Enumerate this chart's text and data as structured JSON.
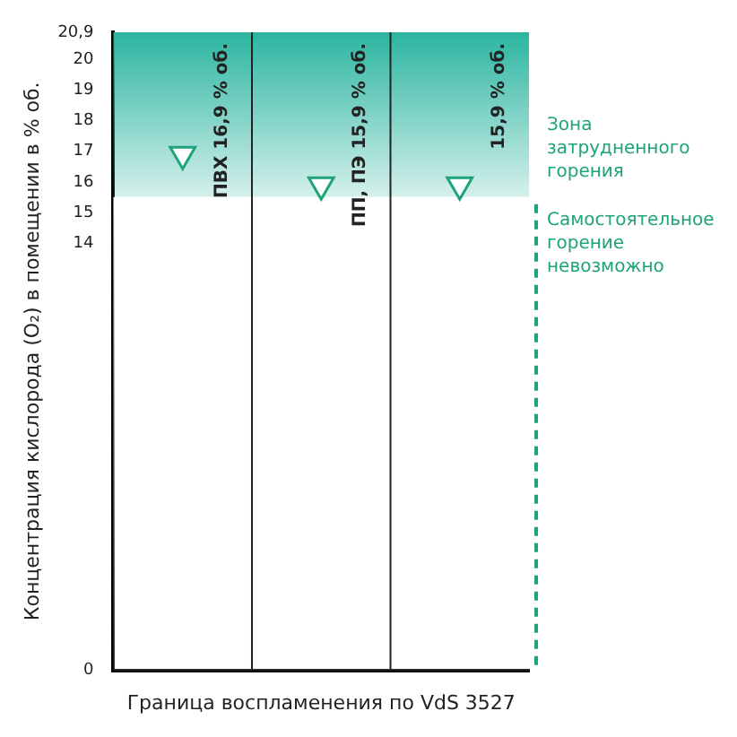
{
  "chart_data": {
    "type": "scatter",
    "xlabel": "Граница воспламенения по VdS 3527",
    "ylabel": "Концентрация кислорода (O₂) в помещении в % об.",
    "categories": [
      "ПВХ",
      "ПП, ПЭ",
      null
    ],
    "values": [
      16.9,
      15.9,
      15.9
    ],
    "value_labels": [
      "16,9 % об.",
      "15,9 % об.",
      "15,9 % об."
    ],
    "color": "#ffffff",
    "marker": "triangle",
    "ylim": [
      0,
      20.9
    ],
    "yticks": [
      0,
      14,
      15,
      16,
      17,
      18,
      19,
      20,
      {
        "value": 20.9,
        "label": "20,9"
      }
    ],
    "bands": [
      {
        "axis": "y",
        "from": 15.5,
        "to": 20.9,
        "label": "Зона затрудненного горения",
        "color": "#2bb5a0"
      },
      {
        "axis": "y",
        "from": 0,
        "to": 15.5,
        "label": "Самостоятельное горение невозможно",
        "color": "#ffffff"
      }
    ],
    "grid": "x",
    "tick_labels": "y",
    "legend": false
  }
}
